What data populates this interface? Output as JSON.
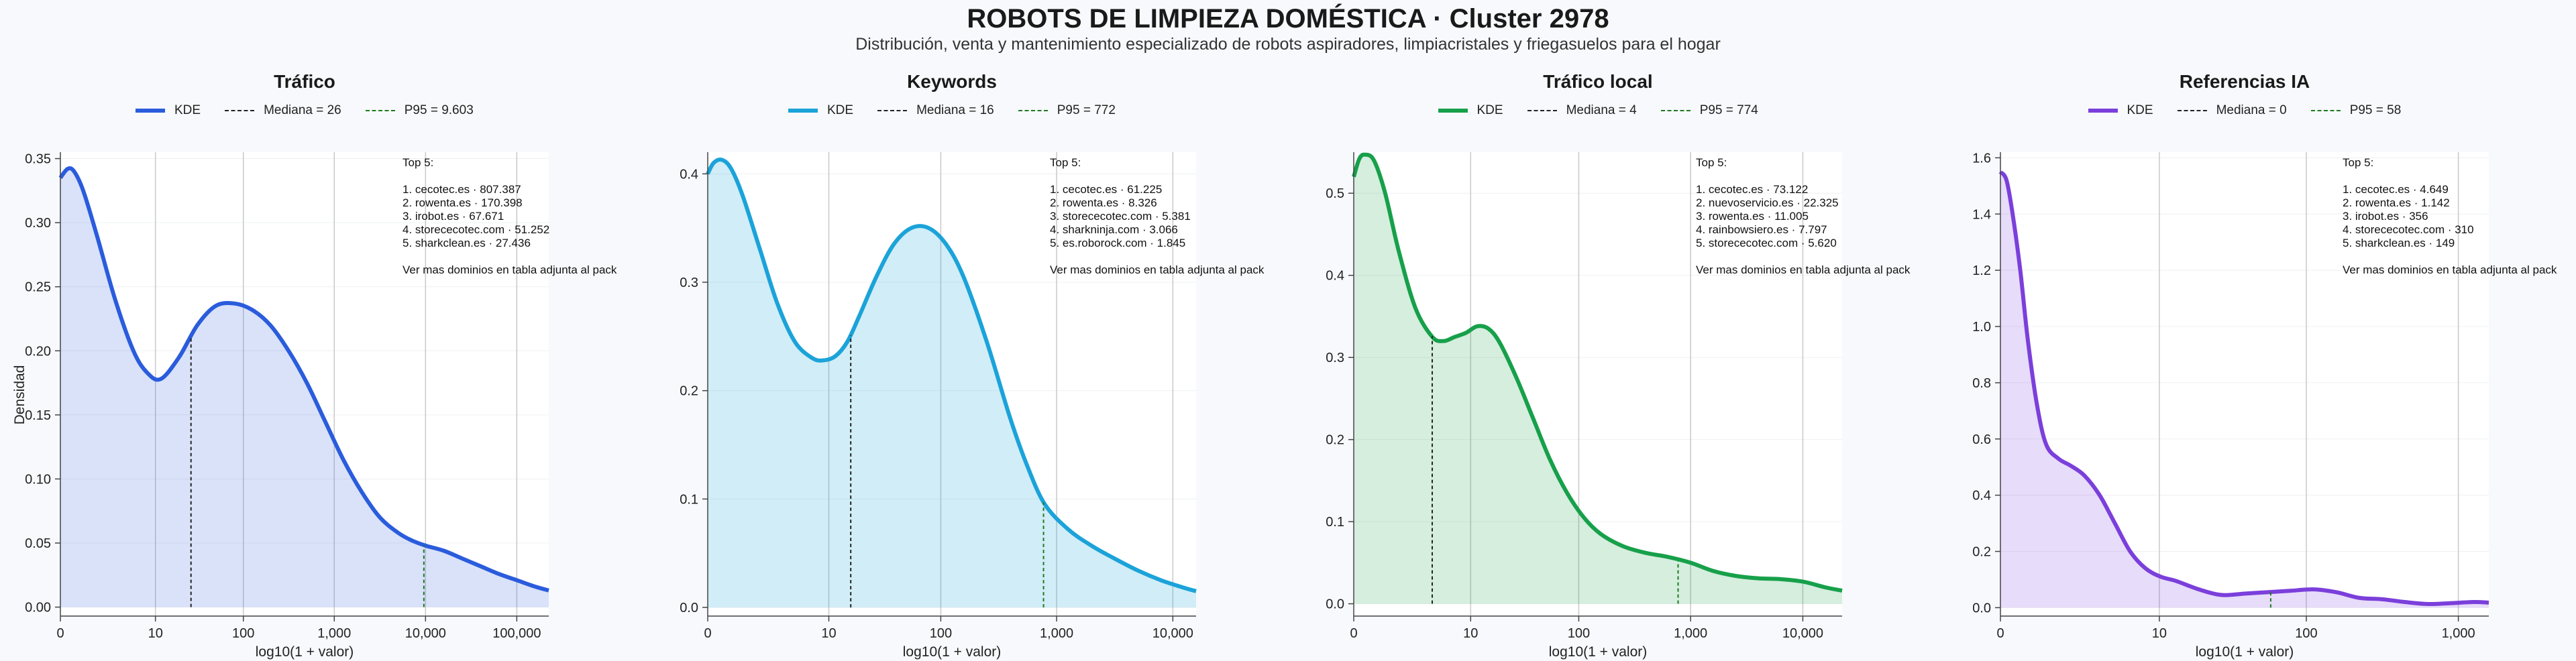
{
  "title": "ROBOTS DE LIMPIEZA DOMÉSTICA · Cluster 2978",
  "subtitle": "Distribución, venta y mantenimiento especializado de robots aspiradores, limpiacristales y friegasuelos para el hogar",
  "colors": {
    "background": "#f7f9fc",
    "trafico": "#2a5cdc",
    "keywords": "#1ba3d9",
    "trafico_local": "#17a04a",
    "referencias_ia": "#7b3fdb",
    "median": "#222222",
    "p95": "#1d7a1d"
  },
  "chart_data": [
    {
      "type": "area",
      "title": "Tráfico",
      "xlabel": "log10(1 + valor)",
      "ylabel": "Densidad",
      "x_scale": "log10(1+x)",
      "xlim": [
        0,
        5.35
      ],
      "ylim": [
        -0.007,
        0.355
      ],
      "x_ticks": [
        0,
        10,
        100,
        1000,
        10000,
        100000
      ],
      "x_tick_labels": [
        "0",
        "10",
        "100",
        "1,000",
        "10,000",
        "100,000"
      ],
      "y_ticks": [
        0.0,
        0.05,
        0.1,
        0.15,
        0.2,
        0.25,
        0.3,
        0.35
      ],
      "y_tick_labels": [
        "0.00",
        "0.05",
        "0.10",
        "0.15",
        "0.20",
        "0.25",
        "0.30",
        "0.35"
      ],
      "grid": "x-major",
      "legend": {
        "position": "top-center",
        "kde": "KDE",
        "median": "Mediana = 26",
        "p95": "P95 = 9.603"
      },
      "series": [
        {
          "name": "KDE",
          "x": [
            0,
            0.08,
            0.15,
            0.25,
            0.4,
            0.6,
            0.8,
            0.95,
            1.1,
            1.3,
            1.5,
            1.7,
            1.9,
            2.1,
            2.3,
            2.5,
            2.7,
            2.9,
            3.1,
            3.3,
            3.5,
            3.7,
            3.85,
            4.0,
            4.2,
            4.4,
            4.6,
            4.8,
            5.0,
            5.2,
            5.35
          ],
          "y": [
            0.335,
            0.342,
            0.34,
            0.325,
            0.29,
            0.24,
            0.2,
            0.183,
            0.178,
            0.195,
            0.22,
            0.235,
            0.237,
            0.232,
            0.22,
            0.2,
            0.175,
            0.145,
            0.115,
            0.09,
            0.07,
            0.058,
            0.052,
            0.048,
            0.044,
            0.038,
            0.032,
            0.026,
            0.021,
            0.016,
            0.013
          ]
        }
      ],
      "median": {
        "label": "Mediana = 26",
        "value": 26,
        "x": 1.431,
        "y": 0.21
      },
      "p95": {
        "label": "P95 = 9.603",
        "value": 9603,
        "x": 3.982,
        "y": 0.048
      },
      "annotation": {
        "header": "Top 5:",
        "items": [
          "1. cecotec.es · 807.387",
          "2. rowenta.es · 170.398",
          "3. irobot.es · 67.671",
          "4. storececotec.com · 51.252",
          "5. sharkclean.es · 27.436"
        ],
        "footer": "Ver mas dominios en tabla adjunta al pack"
      }
    },
    {
      "type": "area",
      "title": "Keywords",
      "xlabel": "log10(1 + valor)",
      "ylabel": "",
      "x_scale": "log10(1+x)",
      "xlim": [
        0,
        4.2
      ],
      "ylim": [
        -0.008,
        0.42
      ],
      "x_ticks": [
        0,
        10,
        100,
        1000,
        10000
      ],
      "x_tick_labels": [
        "0",
        "10",
        "100",
        "1,000",
        "10,000"
      ],
      "y_ticks": [
        0.0,
        0.1,
        0.2,
        0.3,
        0.4
      ],
      "y_tick_labels": [
        "0.0",
        "0.1",
        "0.2",
        "0.3",
        "0.4"
      ],
      "grid": "x-major",
      "legend": {
        "position": "top-center",
        "kde": "KDE",
        "median": "Mediana = 16",
        "p95": "P95 = 772"
      },
      "series": [
        {
          "name": "KDE",
          "x": [
            0,
            0.05,
            0.12,
            0.2,
            0.3,
            0.45,
            0.6,
            0.75,
            0.9,
            1.0,
            1.1,
            1.2,
            1.3,
            1.45,
            1.6,
            1.75,
            1.9,
            2.05,
            2.2,
            2.4,
            2.6,
            2.75,
            2.9,
            3.1,
            3.3,
            3.5,
            3.7,
            3.9,
            4.1,
            4.2
          ],
          "y": [
            0.4,
            0.41,
            0.413,
            0.405,
            0.38,
            0.33,
            0.28,
            0.245,
            0.23,
            0.228,
            0.232,
            0.245,
            0.268,
            0.305,
            0.335,
            0.35,
            0.35,
            0.335,
            0.305,
            0.245,
            0.175,
            0.13,
            0.095,
            0.072,
            0.057,
            0.045,
            0.034,
            0.025,
            0.018,
            0.015
          ]
        }
      ],
      "median": {
        "label": "Mediana = 16",
        "value": 16,
        "x": 1.23,
        "y": 0.251
      },
      "p95": {
        "label": "P95 = 772",
        "value": 772,
        "x": 2.888,
        "y": 0.097
      },
      "annotation": {
        "header": "Top 5:",
        "items": [
          "1. cecotec.es · 61.225",
          "2. rowenta.es · 8.326",
          "3. storececotec.com · 5.381",
          "4. sharkninja.com · 3.066",
          "5. es.roborock.com · 1.845"
        ],
        "footer": "Ver mas dominios en tabla adjunta al pack"
      }
    },
    {
      "type": "area",
      "title": "Tráfico local",
      "xlabel": "log10(1 + valor)",
      "ylabel": "",
      "x_scale": "log10(1+x)",
      "xlim": [
        0,
        4.35
      ],
      "ylim": [
        -0.015,
        0.55
      ],
      "x_ticks": [
        0,
        10,
        100,
        1000,
        10000
      ],
      "x_tick_labels": [
        "0",
        "10",
        "100",
        "1,000",
        "10,000"
      ],
      "y_ticks": [
        0.0,
        0.1,
        0.2,
        0.3,
        0.4,
        0.5
      ],
      "y_tick_labels": [
        "0.0",
        "0.1",
        "0.2",
        "0.3",
        "0.4",
        "0.5"
      ],
      "grid": "x-major",
      "legend": {
        "position": "top-center",
        "kde": "KDE",
        "median": "Mediana = 4",
        "p95": "P95 = 774"
      },
      "series": [
        {
          "name": "KDE",
          "x": [
            0,
            0.05,
            0.1,
            0.18,
            0.28,
            0.4,
            0.55,
            0.7,
            0.8,
            0.9,
            1.0,
            1.1,
            1.2,
            1.3,
            1.45,
            1.6,
            1.75,
            1.9,
            2.05,
            2.2,
            2.4,
            2.6,
            2.8,
            3.0,
            3.2,
            3.4,
            3.6,
            3.8,
            4.0,
            4.2,
            4.35
          ],
          "y": [
            0.52,
            0.542,
            0.547,
            0.54,
            0.5,
            0.43,
            0.36,
            0.325,
            0.32,
            0.325,
            0.33,
            0.338,
            0.335,
            0.318,
            0.275,
            0.225,
            0.175,
            0.135,
            0.105,
            0.085,
            0.07,
            0.062,
            0.057,
            0.05,
            0.04,
            0.034,
            0.031,
            0.03,
            0.027,
            0.02,
            0.016
          ]
        }
      ],
      "median": {
        "label": "Mediana = 4",
        "value": 4,
        "x": 0.699,
        "y": 0.326
      },
      "p95": {
        "label": "P95 = 774",
        "value": 774,
        "x": 2.889,
        "y": 0.052
      },
      "annotation": {
        "header": "Top 5:",
        "items": [
          "1. cecotec.es · 73.122",
          "2. nuevoservicio.es · 22.325",
          "3. rowenta.es · 11.005",
          "4. rainbowsiero.es · 7.797",
          "5. storececotec.com · 5.620"
        ],
        "footer": "Ver mas dominios en tabla adjunta al pack"
      }
    },
    {
      "type": "area",
      "title": "Referencias IA",
      "xlabel": "log10(1 + valor)",
      "ylabel": "",
      "x_scale": "log10(1+x)",
      "xlim": [
        0,
        3.2
      ],
      "ylim": [
        -0.03,
        1.62
      ],
      "x_ticks": [
        0,
        10,
        100,
        1000
      ],
      "x_tick_labels": [
        "0",
        "10",
        "100",
        "1,000"
      ],
      "y_ticks": [
        0.0,
        0.2,
        0.4,
        0.6,
        0.8,
        1.0,
        1.2,
        1.4,
        1.6
      ],
      "y_tick_labels": [
        "0.0",
        "0.2",
        "0.4",
        "0.6",
        "0.8",
        "1.0",
        "1.2",
        "1.4",
        "1.6"
      ],
      "grid": "x-major",
      "legend": {
        "position": "top-center",
        "kde": "KDE",
        "median": "Mediana = 0",
        "p95": "P95 = 58"
      },
      "series": [
        {
          "name": "KDE",
          "x": [
            0,
            0.04,
            0.08,
            0.13,
            0.18,
            0.24,
            0.3,
            0.38,
            0.46,
            0.55,
            0.65,
            0.75,
            0.85,
            0.95,
            1.05,
            1.15,
            1.3,
            1.45,
            1.6,
            1.75,
            1.9,
            2.05,
            2.2,
            2.35,
            2.5,
            2.65,
            2.8,
            2.95,
            3.1,
            3.2
          ],
          "y": [
            1.55,
            1.52,
            1.4,
            1.2,
            0.95,
            0.72,
            0.58,
            0.53,
            0.505,
            0.47,
            0.4,
            0.3,
            0.2,
            0.14,
            0.11,
            0.095,
            0.065,
            0.045,
            0.05,
            0.055,
            0.06,
            0.065,
            0.055,
            0.035,
            0.03,
            0.02,
            0.013,
            0.016,
            0.02,
            0.018
          ]
        }
      ],
      "median": {
        "label": "Mediana = 0",
        "value": 0,
        "x": 0.0,
        "y": 1.55
      },
      "p95": {
        "label": "P95 = 58",
        "value": 58,
        "x": 1.771,
        "y": 0.056
      },
      "annotation": {
        "header": "Top 5:",
        "items": [
          "1. cecotec.es · 4.649",
          "2. rowenta.es · 1.142",
          "3. irobot.es · 356",
          "4. storececotec.com · 310",
          "5. sharkclean.es · 149"
        ],
        "footer": "Ver mas dominios en tabla adjunta al pack"
      }
    }
  ]
}
